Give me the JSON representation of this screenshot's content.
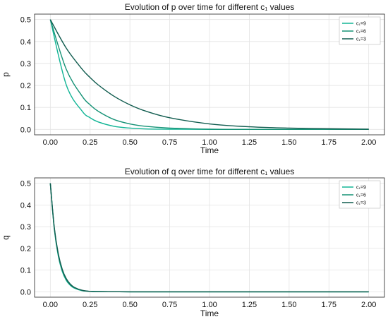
{
  "colors": {
    "c9": "#12b596",
    "c6": "#169276",
    "c3": "#115c4f",
    "grid": "#e3e3e3"
  },
  "chart_data": [
    {
      "type": "line",
      "title": "Evolution of p over time for different  c₁  values",
      "xlabel": "Time",
      "ylabel": "p",
      "xlim": [
        0.0,
        2.0
      ],
      "ylim": [
        0.0,
        0.5
      ],
      "xticks": [
        "0.00",
        "0.25",
        "0.50",
        "0.75",
        "1.00",
        "1.25",
        "1.50",
        "1.75",
        "2.00"
      ],
      "yticks": [
        "0.0",
        "0.1",
        "0.2",
        "0.3",
        "0.4",
        "0.5"
      ],
      "grid": true,
      "legend_position": "top-right",
      "x": [
        0.0,
        0.1,
        0.2,
        0.25,
        0.3,
        0.4,
        0.5,
        0.6,
        0.75,
        1.0,
        1.25,
        1.5,
        1.75,
        2.0
      ],
      "series": [
        {
          "name": "c₁=9",
          "color": "c9",
          "values": [
            0.5,
            0.203,
            0.083,
            0.053,
            0.034,
            0.014,
            0.006,
            0.002,
            0.001,
            0.0,
            0.0,
            0.0,
            0.0,
            0.0
          ]
        },
        {
          "name": "c₁=6",
          "color": "c6",
          "values": [
            0.5,
            0.274,
            0.151,
            0.112,
            0.083,
            0.045,
            0.025,
            0.014,
            0.006,
            0.001,
            0.0,
            0.0,
            0.0,
            0.0
          ]
        },
        {
          "name": "c₁=3",
          "color": "c3",
          "values": [
            0.5,
            0.37,
            0.274,
            0.236,
            0.203,
            0.151,
            0.112,
            0.083,
            0.053,
            0.025,
            0.012,
            0.006,
            0.003,
            0.001
          ]
        }
      ]
    },
    {
      "type": "line",
      "title": "Evolution of q over time for different  c₁  values",
      "xlabel": "Time",
      "ylabel": "q",
      "xlim": [
        0.0,
        2.0
      ],
      "ylim": [
        0.0,
        0.5
      ],
      "xticks": [
        "0.00",
        "0.25",
        "0.50",
        "0.75",
        "1.00",
        "1.25",
        "1.50",
        "1.75",
        "2.00"
      ],
      "yticks": [
        "0.0",
        "0.1",
        "0.2",
        "0.3",
        "0.4",
        "0.5"
      ],
      "grid": true,
      "legend_position": "top-right",
      "x": [
        0.0,
        0.025,
        0.05,
        0.075,
        0.1,
        0.125,
        0.15,
        0.2,
        0.25,
        0.3,
        0.5,
        1.0,
        1.5,
        2.0
      ],
      "series": [
        {
          "name": "c₁=9",
          "color": "c9",
          "values": [
            0.5,
            0.289,
            0.165,
            0.094,
            0.053,
            0.03,
            0.017,
            0.005,
            0.002,
            0.001,
            0.0,
            0.0,
            0.0,
            0.0
          ]
        },
        {
          "name": "c₁=6",
          "color": "c6",
          "values": [
            0.5,
            0.293,
            0.171,
            0.099,
            0.057,
            0.033,
            0.019,
            0.006,
            0.002,
            0.001,
            0.0,
            0.0,
            0.0,
            0.0
          ]
        },
        {
          "name": "c₁=3",
          "color": "c3",
          "values": [
            0.5,
            0.297,
            0.176,
            0.104,
            0.061,
            0.036,
            0.021,
            0.007,
            0.002,
            0.001,
            0.0,
            0.0,
            0.0,
            0.0
          ]
        }
      ]
    }
  ]
}
